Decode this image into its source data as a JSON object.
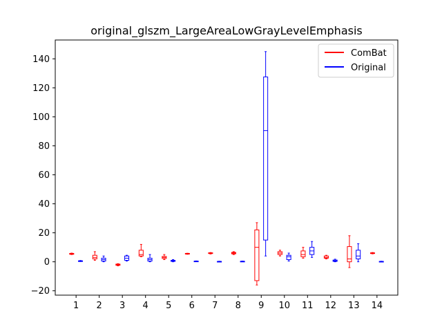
{
  "chart_data": {
    "type": "box",
    "title": "original_glszm_LargeAreaLowGrayLevelEmphasis",
    "xlabel": "",
    "ylabel": "",
    "categories": [
      "1",
      "2",
      "3",
      "4",
      "5",
      "6",
      "7",
      "8",
      "9",
      "10",
      "11",
      "12",
      "13",
      "14"
    ],
    "ylim": [
      -23,
      153
    ],
    "yticks": [
      -20,
      0,
      20,
      40,
      60,
      80,
      100,
      120,
      140
    ],
    "grid": false,
    "legend_placement": "top-right",
    "series": [
      {
        "name": "ComBat",
        "color": "#ff0000",
        "boxes": [
          {
            "min": 5.0,
            "q1": 5.2,
            "median": 5.5,
            "q3": 5.8,
            "max": 6.0
          },
          {
            "min": 1.0,
            "q1": 2.0,
            "median": 3.0,
            "q3": 4.5,
            "max": 7.0
          },
          {
            "min": -2.8,
            "q1": -2.4,
            "median": -2.0,
            "q3": -1.6,
            "max": -1.3
          },
          {
            "min": 3.5,
            "q1": 4.0,
            "median": 5.0,
            "q3": 8.0,
            "max": 12.0
          },
          {
            "min": 1.5,
            "q1": 2.3,
            "median": 3.0,
            "q3": 3.7,
            "max": 5.0
          },
          {
            "min": 5.2,
            "q1": 5.4,
            "median": 5.6,
            "q3": 5.8,
            "max": 5.9
          },
          {
            "min": 5.4,
            "q1": 5.7,
            "median": 5.9,
            "q3": 6.2,
            "max": 6.4
          },
          {
            "min": 5.0,
            "q1": 5.5,
            "median": 6.0,
            "q3": 6.5,
            "max": 7.0
          },
          {
            "min": -16.0,
            "q1": -13.0,
            "median": 10.0,
            "q3": 22.0,
            "max": 27.0
          },
          {
            "min": 4.0,
            "q1": 5.0,
            "median": 6.0,
            "q3": 7.0,
            "max": 8.0
          },
          {
            "min": 2.5,
            "q1": 3.5,
            "median": 5.0,
            "q3": 7.5,
            "max": 10.0
          },
          {
            "min": 2.0,
            "q1": 2.5,
            "median": 3.0,
            "q3": 4.0,
            "max": 4.5
          },
          {
            "min": -4.0,
            "q1": 0.0,
            "median": 2.0,
            "q3": 10.5,
            "max": 18.0
          },
          {
            "min": 5.5,
            "q1": 5.7,
            "median": 6.0,
            "q3": 6.2,
            "max": 6.4
          }
        ]
      },
      {
        "name": "Original",
        "color": "#0000ff",
        "boxes": [
          {
            "min": 0.2,
            "q1": 0.4,
            "median": 0.5,
            "q3": 0.7,
            "max": 0.9
          },
          {
            "min": 0.0,
            "q1": 0.5,
            "median": 1.5,
            "q3": 2.5,
            "max": 4.0
          },
          {
            "min": 0.5,
            "q1": 1.0,
            "median": 2.5,
            "q3": 4.0,
            "max": 4.5
          },
          {
            "min": 0.0,
            "q1": 0.5,
            "median": 1.5,
            "q3": 2.5,
            "max": 5.0
          },
          {
            "min": 0.0,
            "q1": 0.3,
            "median": 0.5,
            "q3": 1.0,
            "max": 1.5
          },
          {
            "min": 0.2,
            "q1": 0.3,
            "median": 0.4,
            "q3": 0.5,
            "max": 0.6
          },
          {
            "min": 0.0,
            "q1": 0.1,
            "median": 0.2,
            "q3": 0.3,
            "max": 0.4
          },
          {
            "min": 0.1,
            "q1": 0.2,
            "median": 0.3,
            "q3": 0.4,
            "max": 0.5
          },
          {
            "min": 4.0,
            "q1": 15.0,
            "median": 90.5,
            "q3": 127.5,
            "max": 145.0
          },
          {
            "min": 0.5,
            "q1": 1.5,
            "median": 3.5,
            "q3": 4.5,
            "max": 6.0
          },
          {
            "min": 3.0,
            "q1": 5.0,
            "median": 7.5,
            "q3": 10.0,
            "max": 14.0
          },
          {
            "min": 0.0,
            "q1": 0.3,
            "median": 0.7,
            "q3": 1.2,
            "max": 1.8
          },
          {
            "min": 0.0,
            "q1": 2.0,
            "median": 4.0,
            "q3": 8.0,
            "max": 12.5
          },
          {
            "min": 0.0,
            "q1": 0.1,
            "median": 0.2,
            "q3": 0.3,
            "max": 0.4
          }
        ]
      }
    ]
  }
}
